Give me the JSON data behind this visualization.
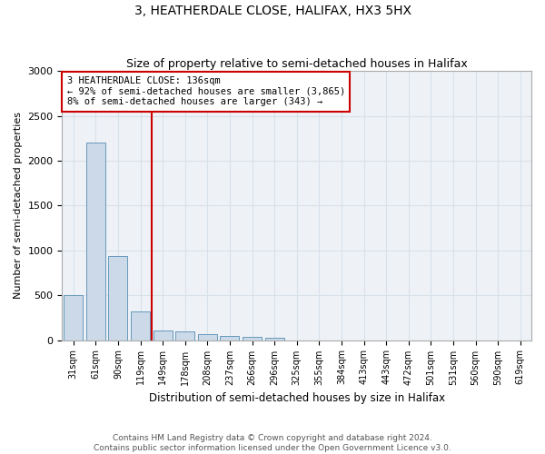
{
  "title": "3, HEATHERDALE CLOSE, HALIFAX, HX3 5HX",
  "subtitle": "Size of property relative to semi-detached houses in Halifax",
  "xlabel": "Distribution of semi-detached houses by size in Halifax",
  "ylabel": "Number of semi-detached properties",
  "categories": [
    "31sqm",
    "61sqm",
    "90sqm",
    "119sqm",
    "149sqm",
    "178sqm",
    "208sqm",
    "237sqm",
    "266sqm",
    "296sqm",
    "325sqm",
    "355sqm",
    "384sqm",
    "413sqm",
    "443sqm",
    "472sqm",
    "501sqm",
    "531sqm",
    "560sqm",
    "590sqm",
    "619sqm"
  ],
  "values": [
    500,
    2200,
    940,
    320,
    105,
    95,
    65,
    45,
    32,
    30,
    0,
    0,
    0,
    0,
    0,
    0,
    0,
    0,
    0,
    0,
    0
  ],
  "bar_color": "#ccd9e8",
  "bar_edge_color": "#6699bb",
  "grid_color": "#d8e0ea",
  "background_color": "#ffffff",
  "plot_bg_color": "#eef2f7",
  "ylim": [
    0,
    3000
  ],
  "yticks": [
    0,
    500,
    1000,
    1500,
    2000,
    2500,
    3000
  ],
  "red_line_x": 3.5,
  "annotation_line1": "3 HEATHERDALE CLOSE: 136sqm",
  "annotation_line2": "← 92% of semi-detached houses are smaller (3,865)",
  "annotation_line3": "8% of semi-detached houses are larger (343) →",
  "annotation_box_color": "#ffffff",
  "annotation_border_color": "#cc0000",
  "title_fontsize": 10,
  "subtitle_fontsize": 9,
  "footer_line1": "Contains HM Land Registry data © Crown copyright and database right 2024.",
  "footer_line2": "Contains public sector information licensed under the Open Government Licence v3.0."
}
